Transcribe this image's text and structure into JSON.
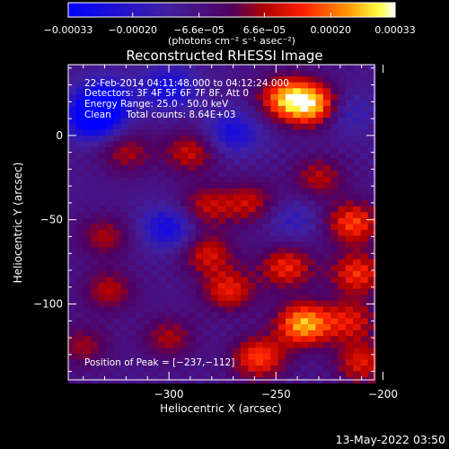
{
  "chart_data": {
    "type": "heatmap",
    "title": "Reconstructed RHESSI Image",
    "xlabel": "Heliocentric X (arcsec)",
    "ylabel": "Heliocentric Y (arcsec)",
    "xlim": [
      -347,
      -204
    ],
    "ylim": [
      -145,
      42
    ],
    "x_ticks": [
      -300,
      -250,
      -200
    ],
    "x_tick_labels": [
      "−300",
      "−250",
      "−200"
    ],
    "y_ticks": [
      0,
      -50,
      -100
    ],
    "y_tick_labels": [
      "0",
      "−50",
      "−100"
    ],
    "colorbar": {
      "range": [
        -0.00033,
        0.00033
      ],
      "ticks": [
        -0.00033,
        -0.0002,
        -6.6e-05,
        6.6e-05,
        0.0002,
        0.00033
      ],
      "tick_labels": [
        "−0.00033",
        "−0.00020",
        "−6.6e−05",
        "6.6e−05",
        "0.00020",
        "0.00033"
      ],
      "unit_label": "(photons cm⁻² s⁻¹ asec⁻²)"
    },
    "annotations": {
      "time": "22-Feb-2014 04:11:48.000 to 04:12:24.000",
      "detectors": "Detectors: 3F 4F 5F 6F 7F 8F, Att 0",
      "energy": "Energy Range: 25.0 - 50.0 keV",
      "clean": "Clean     Total counts: 8.64E+03",
      "peak": "Position of Peak = [−237,−112]"
    },
    "peak_position": [
      -237,
      -112
    ],
    "hotspots": [
      {
        "x": -237,
        "y": -112,
        "value": 0.00033
      },
      {
        "x": -232,
        "y": 18,
        "value": 0.00031
      },
      {
        "x": -245,
        "y": 22,
        "value": 0.00029
      },
      {
        "x": -214,
        "y": -52,
        "value": 0.00024
      },
      {
        "x": -212,
        "y": -82,
        "value": 0.00022
      },
      {
        "x": -272,
        "y": -92,
        "value": 0.0002
      },
      {
        "x": -258,
        "y": -132,
        "value": 0.00024
      },
      {
        "x": -245,
        "y": -78,
        "value": 0.00021
      },
      {
        "x": -282,
        "y": -70,
        "value": 0.00018
      },
      {
        "x": -283,
        "y": -42,
        "value": 0.00016
      },
      {
        "x": -262,
        "y": -40,
        "value": 0.00016
      },
      {
        "x": -290,
        "y": -10,
        "value": 0.00017
      },
      {
        "x": -320,
        "y": -10,
        "value": 0.00014
      },
      {
        "x": -330,
        "y": -60,
        "value": 0.00014
      },
      {
        "x": -328,
        "y": -92,
        "value": 0.00015
      },
      {
        "x": -340,
        "y": -125,
        "value": 0.00013
      },
      {
        "x": -230,
        "y": -25,
        "value": 0.00015
      },
      {
        "x": -215,
        "y": -110,
        "value": 0.00018
      },
      {
        "x": -210,
        "y": -135,
        "value": 0.00019
      },
      {
        "x": -300,
        "y": -120,
        "value": 0.00014
      }
    ],
    "coldspots": [
      {
        "x": -335,
        "y": 10,
        "value": -0.0003
      },
      {
        "x": -300,
        "y": -55,
        "value": -0.0002
      },
      {
        "x": -300,
        "y": 28,
        "value": -0.0002
      },
      {
        "x": -330,
        "y": 22,
        "value": -0.00022
      },
      {
        "x": -270,
        "y": 2,
        "value": -0.00018
      },
      {
        "x": -218,
        "y": 14,
        "value": -0.00012
      },
      {
        "x": -242,
        "y": -50,
        "value": -0.0001
      }
    ]
  },
  "footer": {
    "timestamp": "13-May-2022 03:50"
  }
}
